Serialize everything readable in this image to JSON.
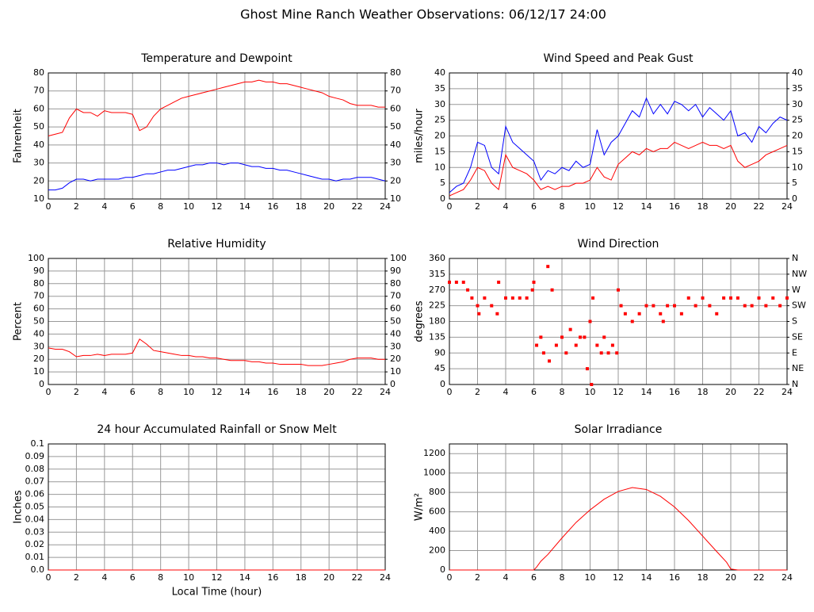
{
  "title": "Ghost Mine Ranch Weather Observations: 06/12/17 24:00",
  "chart_data": [
    {
      "type": "line",
      "title": "Temperature and Dewpoint",
      "ylabel": "Fahrenheit",
      "x": [
        0,
        0.5,
        1,
        1.5,
        2,
        2.5,
        3,
        3.5,
        4,
        4.5,
        5,
        5.5,
        6,
        6.5,
        7,
        7.5,
        8,
        8.5,
        9,
        9.5,
        10,
        10.5,
        11,
        11.5,
        12,
        12.5,
        13,
        13.5,
        14,
        14.5,
        15,
        15.5,
        16,
        16.5,
        17,
        17.5,
        18,
        18.5,
        19,
        19.5,
        20,
        20.5,
        21,
        21.5,
        22,
        22.5,
        23,
        23.5,
        24
      ],
      "series": [
        {
          "color": "#ff0000",
          "values": [
            45,
            46,
            47,
            55,
            60,
            58,
            58,
            56,
            59,
            58,
            58,
            58,
            57,
            48,
            50,
            56,
            60,
            62,
            64,
            66,
            67,
            68,
            69,
            70,
            71,
            72,
            73,
            74,
            75,
            75,
            76,
            75,
            75,
            74,
            74,
            73,
            72,
            71,
            70,
            69,
            67,
            66,
            65,
            63,
            62,
            62,
            62,
            61,
            61
          ]
        },
        {
          "color": "#0000ff",
          "values": [
            15,
            15,
            16,
            19,
            21,
            21,
            20,
            21,
            21,
            21,
            21,
            22,
            22,
            23,
            24,
            24,
            25,
            26,
            26,
            27,
            28,
            29,
            29,
            30,
            30,
            29,
            30,
            30,
            29,
            28,
            28,
            27,
            27,
            26,
            26,
            25,
            24,
            23,
            22,
            21,
            21,
            20,
            21,
            21,
            22,
            22,
            22,
            21,
            20
          ]
        }
      ],
      "xlim": [
        0,
        24
      ],
      "xticks": [
        0,
        2,
        4,
        6,
        8,
        10,
        12,
        14,
        16,
        18,
        20,
        22,
        24
      ],
      "ylim": [
        10,
        80
      ],
      "yticks": [
        10,
        20,
        30,
        40,
        50,
        60,
        70,
        80
      ],
      "y2lim": [
        10,
        80
      ],
      "y2ticks": [
        10,
        20,
        30,
        40,
        50,
        60,
        70,
        80
      ],
      "grid": true
    },
    {
      "type": "line",
      "title": "Wind Speed and Peak Gust",
      "ylabel": "miles/hour",
      "x": [
        0,
        0.5,
        1,
        1.5,
        2,
        2.5,
        3,
        3.5,
        4,
        4.5,
        5,
        5.5,
        6,
        6.5,
        7,
        7.5,
        8,
        8.5,
        9,
        9.5,
        10,
        10.5,
        11,
        11.5,
        12,
        12.5,
        13,
        13.5,
        14,
        14.5,
        15,
        15.5,
        16,
        16.5,
        17,
        17.5,
        18,
        18.5,
        19,
        19.5,
        20,
        20.5,
        21,
        21.5,
        22,
        22.5,
        23,
        23.5,
        24
      ],
      "series": [
        {
          "color": "#0000ff",
          "values": [
            2,
            4,
            5,
            10,
            18,
            17,
            10,
            8,
            23,
            18,
            16,
            14,
            12,
            6,
            9,
            8,
            10,
            9,
            12,
            10,
            11,
            22,
            14,
            18,
            20,
            24,
            28,
            26,
            32,
            27,
            30,
            27,
            31,
            30,
            28,
            30,
            26,
            29,
            27,
            25,
            28,
            20,
            21,
            18,
            23,
            21,
            24,
            26,
            25
          ]
        },
        {
          "color": "#ff0000",
          "values": [
            1,
            2,
            3,
            6,
            10,
            9,
            5,
            3,
            14,
            10,
            9,
            8,
            6,
            3,
            4,
            3,
            4,
            4,
            5,
            5,
            6,
            10,
            7,
            6,
            11,
            13,
            15,
            14,
            16,
            15,
            16,
            16,
            18,
            17,
            16,
            17,
            18,
            17,
            17,
            16,
            17,
            12,
            10,
            11,
            12,
            14,
            15,
            16,
            17
          ]
        }
      ],
      "xlim": [
        0,
        24
      ],
      "xticks": [
        0,
        2,
        4,
        6,
        8,
        10,
        12,
        14,
        16,
        18,
        20,
        22,
        24
      ],
      "ylim": [
        0,
        40
      ],
      "yticks": [
        0,
        5,
        10,
        15,
        20,
        25,
        30,
        35,
        40
      ],
      "y2lim": [
        0,
        40
      ],
      "y2ticks": [
        0,
        5,
        10,
        15,
        20,
        25,
        30,
        35,
        40
      ],
      "grid": true
    },
    {
      "type": "line",
      "title": "Relative Humidity",
      "ylabel": "Percent",
      "x": [
        0,
        0.5,
        1,
        1.5,
        2,
        2.5,
        3,
        3.5,
        4,
        4.5,
        5,
        5.5,
        6,
        6.5,
        7,
        7.5,
        8,
        8.5,
        9,
        9.5,
        10,
        10.5,
        11,
        11.5,
        12,
        12.5,
        13,
        13.5,
        14,
        14.5,
        15,
        15.5,
        16,
        16.5,
        17,
        17.5,
        18,
        18.5,
        19,
        19.5,
        20,
        20.5,
        21,
        21.5,
        22,
        22.5,
        23,
        23.5,
        24
      ],
      "series": [
        {
          "color": "#ff0000",
          "values": [
            29,
            28,
            28,
            26,
            22,
            23,
            23,
            24,
            23,
            24,
            24,
            24,
            25,
            36,
            32,
            27,
            26,
            25,
            24,
            23,
            23,
            22,
            22,
            21,
            21,
            20,
            19,
            19,
            19,
            18,
            18,
            17,
            17,
            16,
            16,
            16,
            16,
            15,
            15,
            15,
            16,
            17,
            18,
            20,
            21,
            21,
            21,
            20,
            20
          ]
        }
      ],
      "xlim": [
        0,
        24
      ],
      "xticks": [
        0,
        2,
        4,
        6,
        8,
        10,
        12,
        14,
        16,
        18,
        20,
        22,
        24
      ],
      "ylim": [
        0,
        100
      ],
      "yticks": [
        0,
        10,
        20,
        30,
        40,
        50,
        60,
        70,
        80,
        90,
        100
      ],
      "y2lim": [
        0,
        100
      ],
      "y2ticks": [
        0,
        10,
        20,
        30,
        40,
        50,
        60,
        70,
        80,
        90,
        100
      ],
      "grid": true
    },
    {
      "type": "scatter",
      "title": "Wind Direction",
      "ylabel": "degrees",
      "color": "#ff0000",
      "x": [
        0,
        0.5,
        1,
        1.3,
        1.6,
        2,
        2.1,
        2.5,
        3,
        3.4,
        3.5,
        4,
        4.5,
        5,
        5.5,
        5.9,
        6,
        6.2,
        6.5,
        6.7,
        7,
        7.1,
        7.3,
        7.6,
        8,
        8.3,
        8.6,
        9,
        9.3,
        9.6,
        9.8,
        10,
        10.1,
        10.2,
        10.5,
        10.8,
        11,
        11.3,
        11.6,
        11.9,
        12,
        12.2,
        12.5,
        13,
        13.5,
        14,
        14.5,
        15,
        15.2,
        15.5,
        16,
        16.5,
        17,
        17.5,
        18,
        18.5,
        19,
        19.5,
        20,
        20.5,
        21,
        21.5,
        22,
        22.5,
        23,
        23.5,
        24
      ],
      "values": [
        292,
        292,
        292,
        270,
        247,
        225,
        202,
        247,
        225,
        202,
        292,
        247,
        247,
        247,
        247,
        270,
        292,
        112,
        135,
        90,
        337,
        67,
        270,
        112,
        135,
        90,
        157,
        112,
        135,
        135,
        45,
        180,
        0,
        247,
        112,
        90,
        135,
        90,
        112,
        90,
        270,
        225,
        202,
        180,
        202,
        225,
        225,
        202,
        180,
        225,
        225,
        202,
        247,
        225,
        247,
        225,
        202,
        247,
        247,
        247,
        225,
        225,
        247,
        225,
        247,
        225,
        247
      ],
      "xlim": [
        0,
        24
      ],
      "xticks": [
        0,
        2,
        4,
        6,
        8,
        10,
        12,
        14,
        16,
        18,
        20,
        22,
        24
      ],
      "ylim": [
        0,
        360
      ],
      "yticks": [
        0,
        45,
        90,
        135,
        180,
        225,
        270,
        315,
        360
      ],
      "y2lim": [
        0,
        360
      ],
      "y2ticks": [
        {
          "value": 0,
          "label": "N"
        },
        {
          "value": 45,
          "label": "NE"
        },
        {
          "value": 90,
          "label": "E"
        },
        {
          "value": 135,
          "label": "SE"
        },
        {
          "value": 180,
          "label": "S"
        },
        {
          "value": 225,
          "label": "SW"
        },
        {
          "value": 270,
          "label": "W"
        },
        {
          "value": 315,
          "label": "NW"
        },
        {
          "value": 360,
          "label": "N"
        }
      ],
      "grid": true
    },
    {
      "type": "line",
      "title": "24 hour Accumulated Rainfall or Snow Melt",
      "ylabel": "Inches",
      "xlabel": "Local Time (hour)",
      "x": [
        0,
        24
      ],
      "series": [
        {
          "color": "#ff0000",
          "values": [
            0,
            0
          ]
        }
      ],
      "xlim": [
        0,
        24
      ],
      "xticks": [
        0,
        2,
        4,
        6,
        8,
        10,
        12,
        14,
        16,
        18,
        20,
        22,
        24
      ],
      "ylim": [
        0,
        0.1
      ],
      "yticks": [
        {
          "value": 0,
          "label": "0.0"
        },
        0.01,
        0.02,
        0.03,
        0.04,
        0.05,
        0.06,
        0.07,
        0.08,
        0.09,
        0.1
      ],
      "grid": true
    },
    {
      "type": "line",
      "title": "Solar Irradiance",
      "ylabel": "W/m²",
      "x": [
        0,
        6,
        6.2,
        6.5,
        7,
        8,
        9,
        10,
        11,
        12,
        13,
        14,
        15,
        16,
        17,
        18,
        19,
        19.7,
        20,
        20.5,
        24
      ],
      "series": [
        {
          "color": "#ff0000",
          "values": [
            0,
            0,
            30,
            90,
            160,
            330,
            490,
            620,
            730,
            810,
            850,
            830,
            760,
            650,
            510,
            350,
            190,
            80,
            10,
            0,
            0
          ]
        }
      ],
      "xlim": [
        0,
        24
      ],
      "xticks": [
        0,
        2,
        4,
        6,
        8,
        10,
        12,
        14,
        16,
        18,
        20,
        22,
        24
      ],
      "ylim": [
        0,
        1300
      ],
      "yticks": [
        0,
        200,
        400,
        600,
        800,
        1000,
        1200
      ],
      "grid": true
    }
  ]
}
